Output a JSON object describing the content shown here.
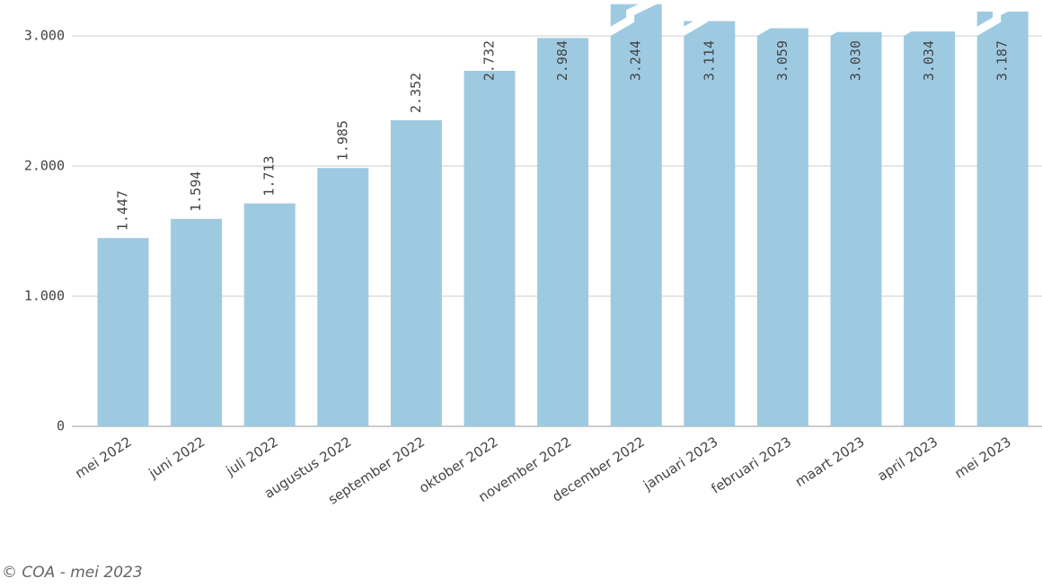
{
  "chart_data": {
    "type": "bar",
    "categories": [
      "mei 2022",
      "juni 2022",
      "juli 2022",
      "augustus 2022",
      "september 2022",
      "oktober 2022",
      "november 2022",
      "december 2022",
      "januari 2023",
      "februari 2023",
      "maart 2023",
      "april 2023",
      "mei 2023"
    ],
    "values": [
      1447,
      1594,
      1713,
      1985,
      2352,
      2732,
      2984,
      3244,
      3114,
      3059,
      3030,
      3034,
      3187
    ],
    "value_labels": [
      "1.447",
      "1.594",
      "1.713",
      "1.985",
      "2.352",
      "2.732",
      "2.984",
      "3.244",
      "3.114",
      "3.059",
      "3.030",
      "3.034",
      "3.187"
    ],
    "color": "#9ecae1",
    "ylim": [
      0,
      3276
    ],
    "yticks": [
      0,
      {
        "value": 1000,
        "label": "1.000"
      },
      {
        "value": 2000,
        "label": "2.000"
      },
      {
        "value": 3000,
        "label": "3.000"
      }
    ],
    "grid": true,
    "source": "© COA - mei 2023"
  }
}
